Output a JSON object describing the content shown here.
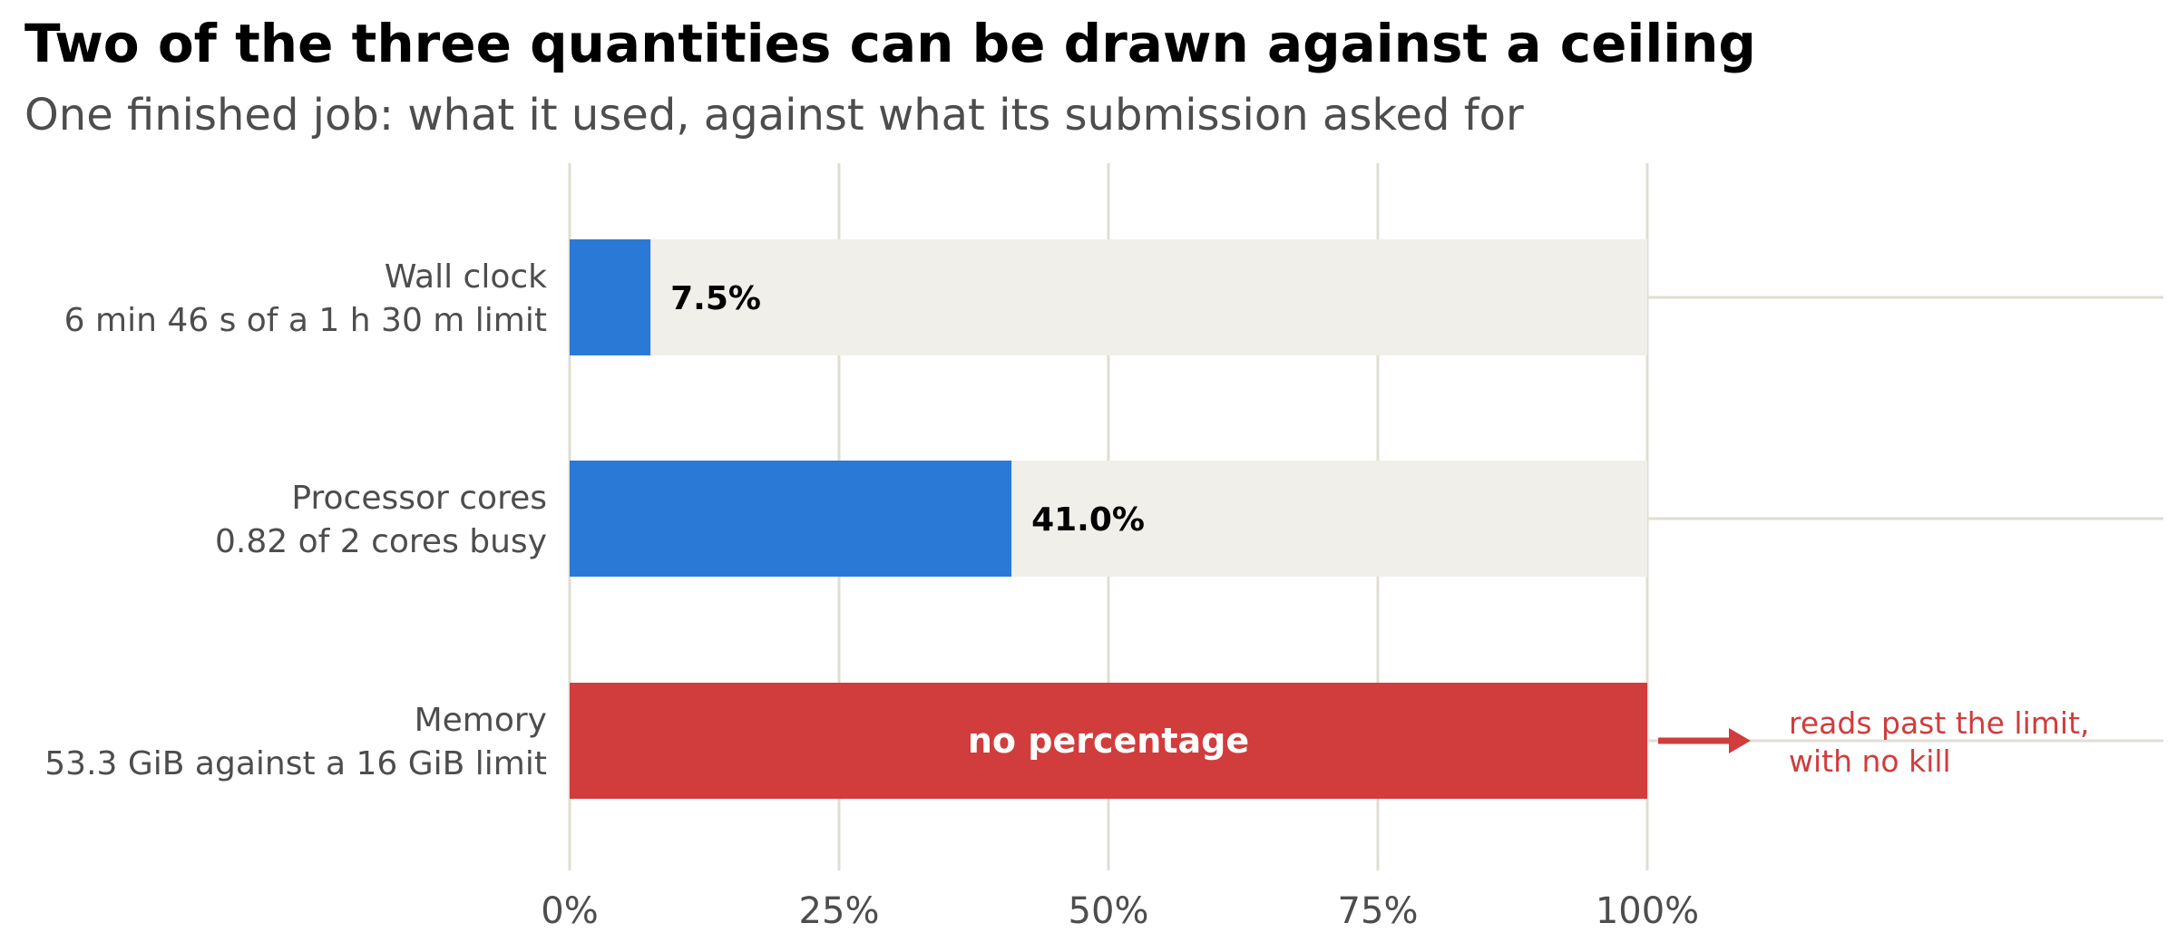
{
  "title": "Two of the three quantities can be drawn against a ceiling",
  "subtitle": "One finished job: what it used, against what its submission asked for",
  "colors": {
    "bar": "#2a79d6",
    "overflow": "#d13c3c",
    "track": "#f0efea",
    "grid": "#e0ddd3",
    "text_muted": "#4d4d4d"
  },
  "chart_data": {
    "type": "bar",
    "orientation": "horizontal",
    "xlim": [
      0,
      100
    ],
    "x_ticks": [
      0,
      25,
      50,
      75,
      100
    ],
    "x_tick_labels": [
      "0%",
      "25%",
      "50%",
      "75%",
      "100%"
    ],
    "limit_value": 100,
    "grid": "vertical",
    "legend": "none",
    "bars": [
      {
        "label": "Wall clock",
        "detail": "6 min 46 s of a 1 h 30 m limit",
        "value": 7.5,
        "value_label": "7.5%",
        "style": "normal"
      },
      {
        "label": "Processor cores",
        "detail": "0.82 of 2 cores busy",
        "value": 41.0,
        "value_label": "41.0%",
        "style": "normal"
      },
      {
        "label": "Memory",
        "detail": "53.3 GiB against a 16 GiB limit",
        "value": 100,
        "value_label": "no percentage",
        "style": "overflow",
        "annotation": [
          "reads past the limit,",
          "with no kill"
        ]
      }
    ]
  }
}
